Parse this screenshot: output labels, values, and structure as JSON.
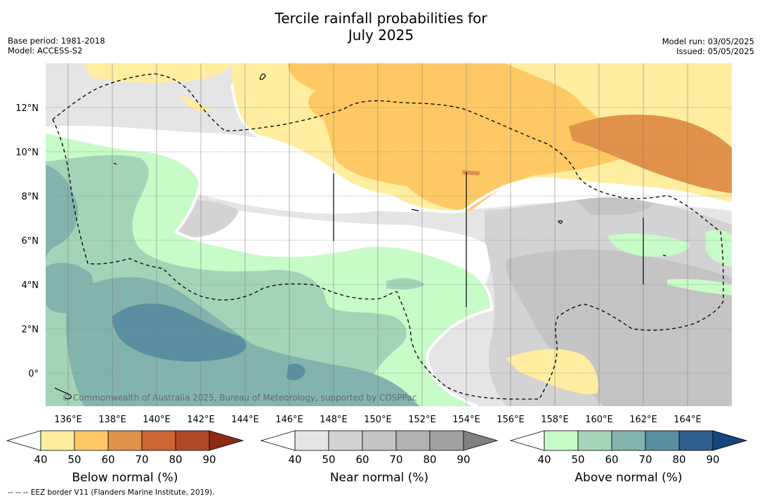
{
  "title_line1": "Tercile rainfall probabilities for",
  "title_line2": "July 2025",
  "base_period": "Base period: 1981-2018",
  "model": "Model: ACCESS-S2",
  "model_run": "Model run: 03/05/2025",
  "issued": "Issued: 05/05/2025",
  "copyright": "© Commonwealth of Australia 2025, Bureau of Meteorology, supported by COSPPac",
  "footnote": "--  --  -- EEZ border V11 (Flanders Marine Institute, 2019).",
  "lon_labels": [
    "136°E",
    "138°E",
    "140°E",
    "142°E",
    "144°E",
    "146°E",
    "148°E",
    "150°E",
    "152°E",
    "154°E",
    "156°E",
    "158°E",
    "160°E",
    "162°E",
    "164°E"
  ],
  "lat_labels": [
    "12°N",
    "10°N",
    "8°N",
    "6°N",
    "4°N",
    "2°N",
    "0°"
  ],
  "legends": [
    {
      "label": "Below normal (%)",
      "ticks": [
        "40",
        "50",
        "60",
        "70",
        "80",
        "90"
      ],
      "colors": [
        "#ffffff",
        "#ffeda0",
        "#fec965",
        "#e0924a",
        "#cd6535",
        "#b04927",
        "#8b2a16"
      ]
    },
    {
      "label": "Near normal (%)",
      "ticks": [
        "40",
        "50",
        "60",
        "70",
        "80",
        "90"
      ],
      "colors": [
        "#ffffff",
        "#e5e5e5",
        "#d3d3d3",
        "#c4c4c4",
        "#b2b2b2",
        "#a2a2a2",
        "#808080"
      ]
    },
    {
      "label": "Above normal (%)",
      "ticks": [
        "40",
        "50",
        "60",
        "70",
        "80",
        "90"
      ],
      "colors": [
        "#ffffff",
        "#c7fbc7",
        "#a4d4b8",
        "#82b4ad",
        "#5a8fa2",
        "#2e5f8f",
        "#16467e"
      ]
    }
  ]
}
